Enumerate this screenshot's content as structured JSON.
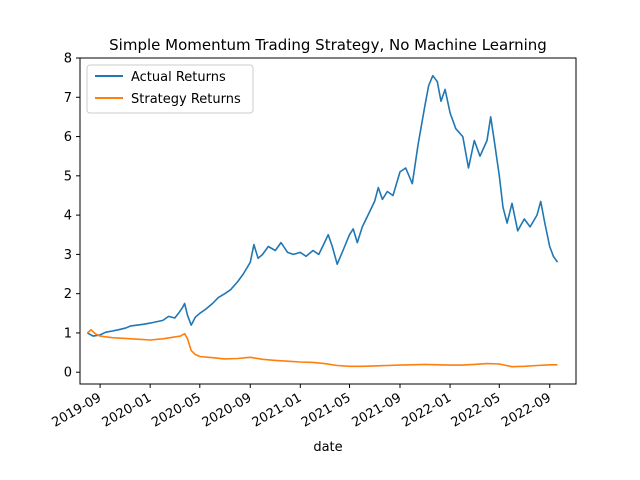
{
  "chart_data": {
    "type": "line",
    "title": "Simple Momentum Trading Strategy, No Machine Learning",
    "xlabel": "date",
    "ylabel": "",
    "xlim": [
      "2019-07-14",
      "2022-11-04"
    ],
    "ylim": [
      -0.3,
      8.0
    ],
    "x_ticks": [
      "2019-09-01",
      "2020-01-01",
      "2020-05-01",
      "2020-09-01",
      "2021-01-01",
      "2021-05-01",
      "2021-09-01",
      "2022-01-01",
      "2022-05-01",
      "2022-09-01"
    ],
    "x_tick_labels": [
      "2019-09",
      "2020-01",
      "2020-05",
      "2020-09",
      "2021-01",
      "2021-05",
      "2021-09",
      "2022-01",
      "2022-05",
      "2022-09"
    ],
    "y_ticks": [
      0,
      1,
      2,
      3,
      4,
      5,
      6,
      7,
      8
    ],
    "grid": false,
    "legend_position": "upper-left",
    "series": [
      {
        "name": "Actual Returns",
        "color": "#1f77b4",
        "points": [
          [
            "2019-08-01",
            1.0
          ],
          [
            "2019-08-15",
            0.92
          ],
          [
            "2019-09-01",
            0.95
          ],
          [
            "2019-09-15",
            1.02
          ],
          [
            "2019-10-01",
            1.05
          ],
          [
            "2019-10-15",
            1.08
          ],
          [
            "2019-11-01",
            1.12
          ],
          [
            "2019-11-15",
            1.18
          ],
          [
            "2019-12-01",
            1.2
          ],
          [
            "2019-12-15",
            1.22
          ],
          [
            "2020-01-01",
            1.25
          ],
          [
            "2020-01-15",
            1.28
          ],
          [
            "2020-02-01",
            1.32
          ],
          [
            "2020-02-15",
            1.42
          ],
          [
            "2020-03-01",
            1.38
          ],
          [
            "2020-03-10",
            1.5
          ],
          [
            "2020-03-20",
            1.65
          ],
          [
            "2020-03-25",
            1.75
          ],
          [
            "2020-04-01",
            1.45
          ],
          [
            "2020-04-10",
            1.2
          ],
          [
            "2020-04-20",
            1.4
          ],
          [
            "2020-05-01",
            1.5
          ],
          [
            "2020-05-15",
            1.6
          ],
          [
            "2020-06-01",
            1.75
          ],
          [
            "2020-06-15",
            1.9
          ],
          [
            "2020-07-01",
            2.0
          ],
          [
            "2020-07-15",
            2.1
          ],
          [
            "2020-08-01",
            2.3
          ],
          [
            "2020-08-15",
            2.5
          ],
          [
            "2020-09-01",
            2.8
          ],
          [
            "2020-09-10",
            3.25
          ],
          [
            "2020-09-20",
            2.9
          ],
          [
            "2020-10-01",
            3.0
          ],
          [
            "2020-10-15",
            3.2
          ],
          [
            "2020-11-01",
            3.1
          ],
          [
            "2020-11-15",
            3.3
          ],
          [
            "2020-12-01",
            3.05
          ],
          [
            "2020-12-15",
            3.0
          ],
          [
            "2021-01-01",
            3.05
          ],
          [
            "2021-01-15",
            2.95
          ],
          [
            "2021-02-01",
            3.1
          ],
          [
            "2021-02-15",
            3.0
          ],
          [
            "2021-03-01",
            3.3
          ],
          [
            "2021-03-10",
            3.5
          ],
          [
            "2021-03-20",
            3.2
          ],
          [
            "2021-04-01",
            2.75
          ],
          [
            "2021-04-15",
            3.1
          ],
          [
            "2021-05-01",
            3.5
          ],
          [
            "2021-05-10",
            3.65
          ],
          [
            "2021-05-20",
            3.3
          ],
          [
            "2021-06-01",
            3.7
          ],
          [
            "2021-06-15",
            4.0
          ],
          [
            "2021-07-01",
            4.35
          ],
          [
            "2021-07-10",
            4.7
          ],
          [
            "2021-07-20",
            4.4
          ],
          [
            "2021-08-01",
            4.6
          ],
          [
            "2021-08-15",
            4.5
          ],
          [
            "2021-09-01",
            5.1
          ],
          [
            "2021-09-15",
            5.2
          ],
          [
            "2021-10-01",
            4.8
          ],
          [
            "2021-10-15",
            5.8
          ],
          [
            "2021-11-01",
            6.8
          ],
          [
            "2021-11-10",
            7.3
          ],
          [
            "2021-11-20",
            7.55
          ],
          [
            "2021-12-01",
            7.4
          ],
          [
            "2021-12-10",
            6.9
          ],
          [
            "2021-12-20",
            7.2
          ],
          [
            "2022-01-01",
            6.6
          ],
          [
            "2022-01-15",
            6.2
          ],
          [
            "2022-02-01",
            6.0
          ],
          [
            "2022-02-15",
            5.2
          ],
          [
            "2022-03-01",
            5.9
          ],
          [
            "2022-03-15",
            5.5
          ],
          [
            "2022-04-01",
            5.9
          ],
          [
            "2022-04-10",
            6.5
          ],
          [
            "2022-04-20",
            5.8
          ],
          [
            "2022-05-01",
            5.0
          ],
          [
            "2022-05-10",
            4.2
          ],
          [
            "2022-05-20",
            3.8
          ],
          [
            "2022-06-01",
            4.3
          ],
          [
            "2022-06-15",
            3.6
          ],
          [
            "2022-07-01",
            3.9
          ],
          [
            "2022-07-15",
            3.7
          ],
          [
            "2022-08-01",
            4.0
          ],
          [
            "2022-08-10",
            4.35
          ],
          [
            "2022-08-20",
            3.8
          ],
          [
            "2022-09-01",
            3.2
          ],
          [
            "2022-09-10",
            2.95
          ],
          [
            "2022-09-20",
            2.8
          ]
        ]
      },
      {
        "name": "Strategy Returns",
        "color": "#ff7f0e",
        "points": [
          [
            "2019-08-01",
            1.0
          ],
          [
            "2019-08-10",
            1.08
          ],
          [
            "2019-08-20",
            0.98
          ],
          [
            "2019-09-01",
            0.92
          ],
          [
            "2019-10-01",
            0.88
          ],
          [
            "2019-11-01",
            0.86
          ],
          [
            "2019-12-01",
            0.84
          ],
          [
            "2020-01-01",
            0.82
          ],
          [
            "2020-02-01",
            0.85
          ],
          [
            "2020-03-01",
            0.9
          ],
          [
            "2020-03-15",
            0.92
          ],
          [
            "2020-03-25",
            0.98
          ],
          [
            "2020-04-01",
            0.85
          ],
          [
            "2020-04-10",
            0.55
          ],
          [
            "2020-04-20",
            0.45
          ],
          [
            "2020-05-01",
            0.4
          ],
          [
            "2020-06-01",
            0.37
          ],
          [
            "2020-07-01",
            0.34
          ],
          [
            "2020-08-01",
            0.35
          ],
          [
            "2020-09-01",
            0.38
          ],
          [
            "2020-10-01",
            0.33
          ],
          [
            "2020-11-01",
            0.3
          ],
          [
            "2020-12-01",
            0.28
          ],
          [
            "2021-01-01",
            0.26
          ],
          [
            "2021-02-01",
            0.25
          ],
          [
            "2021-03-01",
            0.22
          ],
          [
            "2021-04-01",
            0.17
          ],
          [
            "2021-05-01",
            0.15
          ],
          [
            "2021-06-01",
            0.15
          ],
          [
            "2021-07-01",
            0.16
          ],
          [
            "2021-08-01",
            0.17
          ],
          [
            "2021-09-01",
            0.18
          ],
          [
            "2021-10-01",
            0.19
          ],
          [
            "2021-11-01",
            0.2
          ],
          [
            "2021-12-01",
            0.19
          ],
          [
            "2022-01-01",
            0.18
          ],
          [
            "2022-02-01",
            0.18
          ],
          [
            "2022-03-01",
            0.2
          ],
          [
            "2022-04-01",
            0.22
          ],
          [
            "2022-05-01",
            0.21
          ],
          [
            "2022-06-01",
            0.14
          ],
          [
            "2022-07-01",
            0.15
          ],
          [
            "2022-08-01",
            0.17
          ],
          [
            "2022-09-01",
            0.19
          ],
          [
            "2022-09-20",
            0.19
          ]
        ]
      }
    ]
  }
}
